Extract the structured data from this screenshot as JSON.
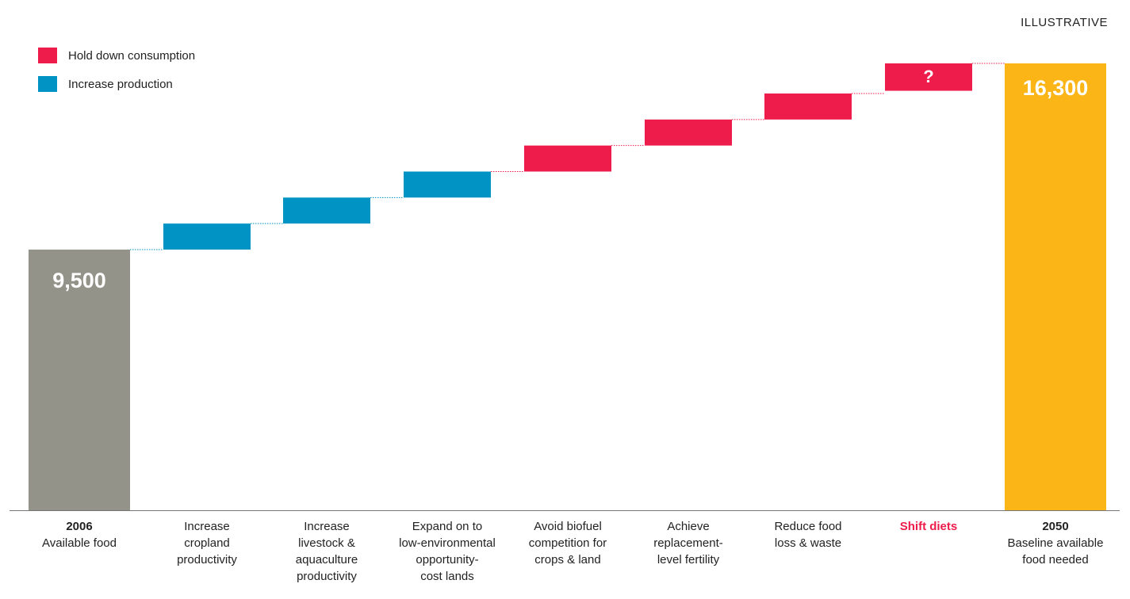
{
  "tag": "ILLUSTRATIVE",
  "legend": [
    {
      "label": "Hold down consumption",
      "color": "#ee1c4b"
    },
    {
      "label": "Increase production",
      "color": "#0093c4"
    }
  ],
  "chart_data": {
    "type": "bar",
    "subtype": "waterfall",
    "ylim": [
      0,
      17000
    ],
    "start": {
      "value": 9500,
      "label": "9,500",
      "color": "#94938a"
    },
    "end": {
      "value": 16300,
      "label": "16,300",
      "color": "#fbb516"
    },
    "steps": [
      {
        "from": 9500,
        "to": 10450,
        "group": "Increase production"
      },
      {
        "from": 10450,
        "to": 11400,
        "group": "Increase production"
      },
      {
        "from": 11400,
        "to": 12350,
        "group": "Increase production"
      },
      {
        "from": 12350,
        "to": 13300,
        "group": "Hold down consumption"
      },
      {
        "from": 13300,
        "to": 14250,
        "group": "Hold down consumption"
      },
      {
        "from": 14250,
        "to": 15200,
        "group": "Hold down consumption"
      },
      {
        "from": 15300,
        "to": 16300,
        "group": "Hold down consumption",
        "label": "?"
      }
    ],
    "categories": [
      {
        "bold": "2006",
        "text": [
          "Available food"
        ]
      },
      {
        "bold": "",
        "text": [
          "Increase",
          "cropland",
          "productivity"
        ]
      },
      {
        "bold": "",
        "text": [
          "Increase",
          "livestock &",
          "aquaculture",
          "productivity"
        ]
      },
      {
        "bold": "",
        "text": [
          "Expand on to",
          "low-environmental",
          "opportunity-",
          "cost lands"
        ]
      },
      {
        "bold": "",
        "text": [
          "Avoid biofuel",
          "competition for",
          "crops & land"
        ]
      },
      {
        "bold": "",
        "text": [
          "Achieve",
          "replacement-",
          "level fertility"
        ]
      },
      {
        "bold": "",
        "text": [
          "Reduce food",
          "loss & waste"
        ]
      },
      {
        "bold_red": "Shift diets",
        "text": []
      },
      {
        "bold": "2050",
        "text": [
          "Baseline available",
          "food needed"
        ]
      }
    ]
  }
}
